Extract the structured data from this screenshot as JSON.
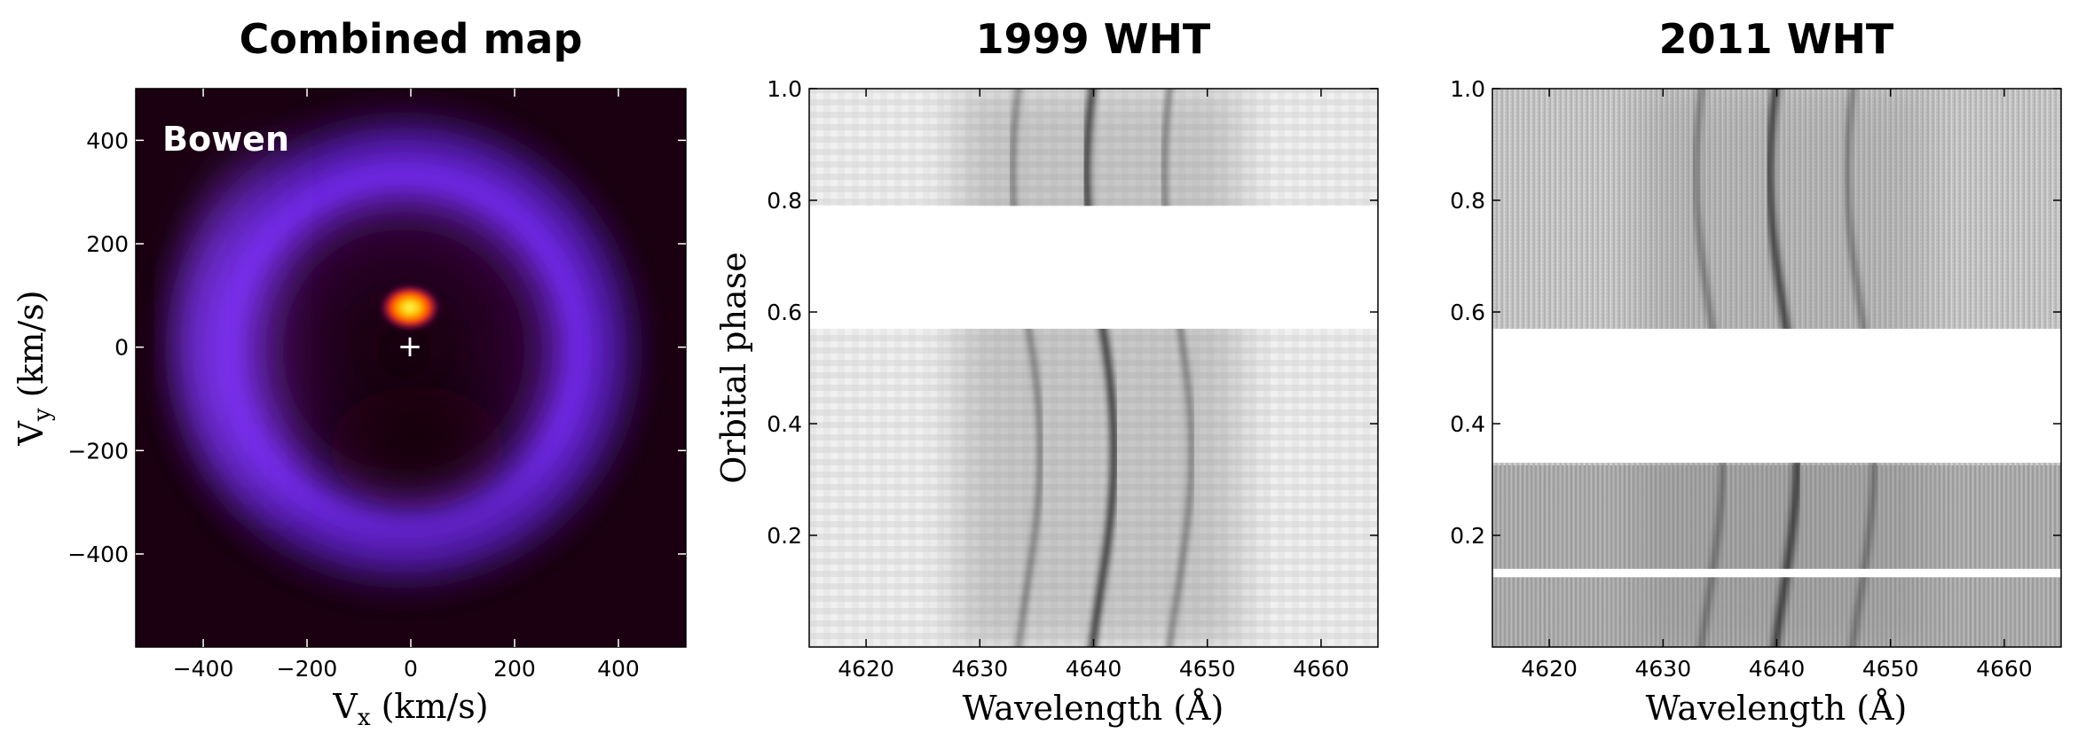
{
  "chart_data": [
    {
      "type": "heatmap",
      "title": "Combined map",
      "xlabel": "Vx (km/s)",
      "xlabel_main": "V",
      "xlabel_sub": "x",
      "xlabel_unit": " (km/s)",
      "ylabel_main": "V",
      "ylabel_sub": "y",
      "ylabel_unit": " (km/s)",
      "xlim": [
        -530,
        530
      ],
      "ylim": [
        -580,
        500
      ],
      "xticks": [
        -400,
        -200,
        0,
        200,
        400
      ],
      "xtick_labels": [
        "−400",
        "−200",
        "0",
        "200",
        "400"
      ],
      "yticks": [
        -400,
        -200,
        0,
        200,
        400
      ],
      "ytick_labels": [
        "−400",
        "−200",
        "0",
        "200",
        "400"
      ],
      "annotation": "Bowen",
      "marker": {
        "symbol": "+",
        "x": 0,
        "y": 0
      },
      "features": {
        "ring": {
          "center": [
            -20,
            -10
          ],
          "radius": 300,
          "description": "emission ring, strongest on left"
        },
        "hot_spot": {
          "x": 0,
          "y": 75
        }
      },
      "colormap": "gnuplot",
      "grid": false
    },
    {
      "type": "heatmap",
      "title": "1999 WHT",
      "xlabel": "Wavelength (Å)",
      "ylabel": "Orbital phase",
      "xlim": [
        4615,
        4665
      ],
      "ylim": [
        0.0,
        1.0
      ],
      "xticks": [
        4620,
        4630,
        4640,
        4650,
        4660
      ],
      "xtick_labels": [
        "4620",
        "4630",
        "4640",
        "4650",
        "4660"
      ],
      "yticks": [
        0.2,
        0.4,
        0.6,
        0.8,
        1.0
      ],
      "ytick_labels": [
        "0.2",
        "0.4",
        "0.6",
        "0.8",
        "1.0"
      ],
      "gaps": [
        [
          0.57,
          0.79
        ]
      ],
      "emission_lines": [
        4634.1,
        4640.6,
        4647.4
      ],
      "colormap": "gray_r",
      "grid": false
    },
    {
      "type": "heatmap",
      "title": "2011 WHT",
      "xlabel": "Wavelength (Å)",
      "ylabel": "",
      "xlim": [
        4615,
        4665
      ],
      "ylim": [
        0.0,
        1.0
      ],
      "xticks": [
        4620,
        4630,
        4640,
        4650,
        4660
      ],
      "xtick_labels": [
        "4620",
        "4630",
        "4640",
        "4650",
        "4660"
      ],
      "yticks": [
        0.2,
        0.4,
        0.6,
        0.8,
        1.0
      ],
      "ytick_labels": [
        "0.2",
        "0.4",
        "0.6",
        "0.8",
        "1.0"
      ],
      "gaps": [
        [
          0.33,
          0.57
        ],
        [
          0.125,
          0.14
        ]
      ],
      "emission_lines": [
        4634.1,
        4640.6,
        4647.4
      ],
      "colormap": "gray_r",
      "grid": false
    }
  ],
  "colors": {
    "map_background": "#1a0010",
    "ring": "#7a2cff",
    "hot_spot": "#ffc800",
    "trail_background": "#e6e6e6",
    "trail_line": "#1e1e1e"
  }
}
